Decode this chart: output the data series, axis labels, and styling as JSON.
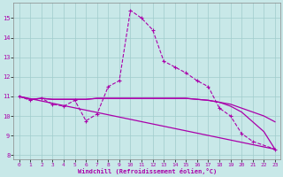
{
  "xlabel": "Windchill (Refroidissement éolien,°C)",
  "bg_color": "#c8e8e8",
  "grid_color": "#a0cccc",
  "line_color": "#aa00aa",
  "xlim": [
    -0.5,
    23.5
  ],
  "ylim": [
    7.8,
    15.8
  ],
  "yticks": [
    8,
    9,
    10,
    11,
    12,
    13,
    14,
    15
  ],
  "xticks": [
    0,
    1,
    2,
    3,
    4,
    5,
    6,
    7,
    8,
    9,
    10,
    11,
    12,
    13,
    14,
    15,
    16,
    17,
    18,
    19,
    20,
    21,
    22,
    23
  ],
  "line1_x": [
    0,
    1,
    2,
    3,
    4,
    5,
    6,
    7,
    8,
    9,
    10,
    11,
    12,
    13,
    14,
    15,
    16,
    17,
    18,
    19,
    20,
    21,
    23
  ],
  "line1_y": [
    11.0,
    10.8,
    10.9,
    10.6,
    10.5,
    10.8,
    9.75,
    10.1,
    11.5,
    11.8,
    15.4,
    15.0,
    14.4,
    12.8,
    12.5,
    12.2,
    11.8,
    11.5,
    10.4,
    10.0,
    9.1,
    8.7,
    8.3
  ],
  "line2_x": [
    0,
    1,
    2,
    3,
    4,
    5,
    6,
    7,
    8,
    9,
    10,
    11,
    12,
    13,
    14,
    15,
    16,
    17,
    18,
    19,
    20,
    21,
    22,
    23
  ],
  "line2_y": [
    11.0,
    10.85,
    10.9,
    10.85,
    10.85,
    10.85,
    10.85,
    10.9,
    10.9,
    10.9,
    10.9,
    10.9,
    10.9,
    10.9,
    10.9,
    10.9,
    10.85,
    10.8,
    10.7,
    10.6,
    10.4,
    10.2,
    10.0,
    9.7
  ],
  "line3_x": [
    0,
    1,
    2,
    3,
    4,
    5,
    6,
    7,
    8,
    9,
    10,
    11,
    12,
    13,
    14,
    15,
    16,
    17,
    18,
    19,
    20,
    21,
    22,
    23
  ],
  "line3_y": [
    11.0,
    10.85,
    10.9,
    10.85,
    10.85,
    10.85,
    10.85,
    10.9,
    10.9,
    10.9,
    10.9,
    10.9,
    10.9,
    10.9,
    10.9,
    10.9,
    10.85,
    10.8,
    10.7,
    10.5,
    10.2,
    9.7,
    9.2,
    8.3
  ],
  "line4_x": [
    0,
    23
  ],
  "line4_y": [
    11.0,
    8.3
  ]
}
